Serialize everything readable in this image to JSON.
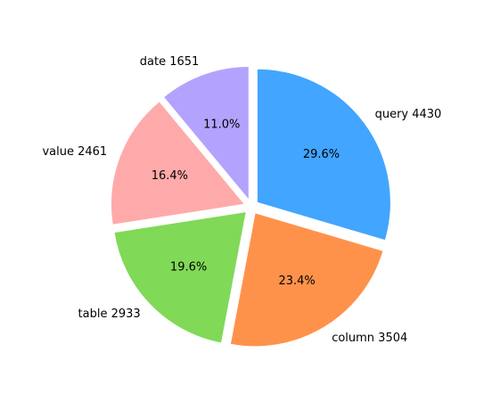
{
  "chart_data": {
    "type": "pie",
    "slices": [
      {
        "label": "query 4430",
        "category": "query",
        "value": 4430,
        "percent": "29.6%",
        "color": "#42a5ff"
      },
      {
        "label": "column 3504",
        "category": "column",
        "value": 3504,
        "percent": "23.4%",
        "color": "#ff924b"
      },
      {
        "label": "table 2933",
        "category": "table",
        "value": 2933,
        "percent": "19.6%",
        "color": "#80d957"
      },
      {
        "label": "value 2461",
        "category": "value",
        "value": 2461,
        "percent": "16.4%",
        "color": "#ffaaaa"
      },
      {
        "label": "date 1651",
        "category": "date",
        "value": 1651,
        "percent": "11.0%",
        "color": "#b4a2ff"
      }
    ],
    "start_angle_deg": 90,
    "direction": "clockwise",
    "explode": true,
    "legend": "none"
  }
}
